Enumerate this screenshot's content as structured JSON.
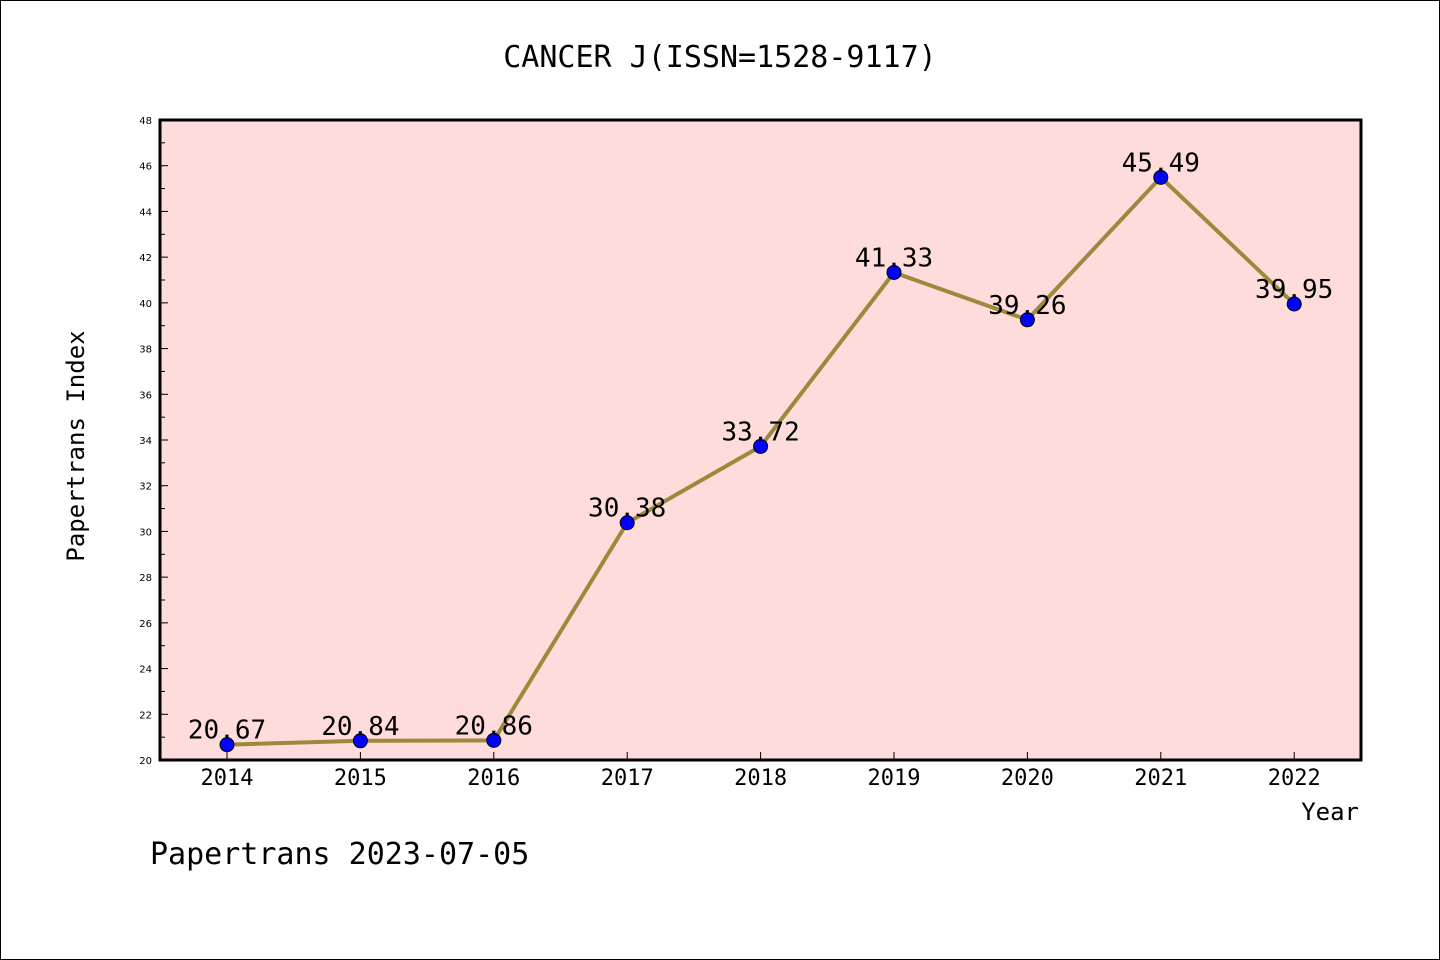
{
  "chart_data": {
    "type": "line",
    "title": "CANCER J(ISSN=1528-9117)",
    "xlabel": "Year",
    "ylabel": "Papertrans Index",
    "categories": [
      "2014",
      "2015",
      "2016",
      "2017",
      "2018",
      "2019",
      "2020",
      "2021",
      "2022"
    ],
    "series": [
      {
        "values": [
          20.67,
          20.84,
          20.86,
          30.38,
          33.72,
          41.33,
          39.26,
          45.49,
          39.95
        ],
        "labels": [
          "20.67",
          "20.84",
          "20.86",
          "30.38",
          "33.72",
          "41.33",
          "39.26",
          "45.49",
          "39.95"
        ]
      }
    ],
    "ylim": [
      20,
      48
    ],
    "yticks": [
      "20",
      "22",
      "24",
      "26",
      "28",
      "30",
      "32",
      "34",
      "36",
      "38",
      "40",
      "42",
      "44",
      "46",
      "48"
    ],
    "grid": false,
    "colors": {
      "plot_background": "#ffdcdc",
      "line": "#9b8a3c",
      "marker": "#0000ff"
    }
  },
  "footer": "Papertrans 2023-07-05"
}
